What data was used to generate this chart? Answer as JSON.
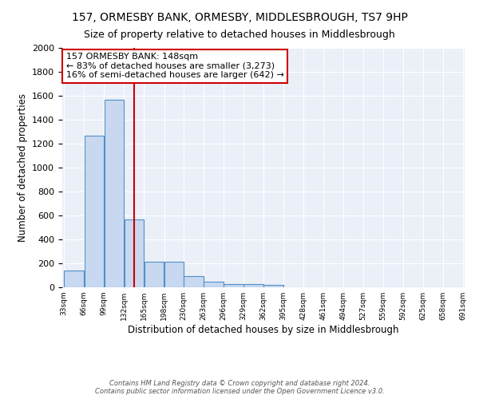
{
  "title": "157, ORMESBY BANK, ORMESBY, MIDDLESBROUGH, TS7 9HP",
  "subtitle": "Size of property relative to detached houses in Middlesbrough",
  "xlabel": "Distribution of detached houses by size in Middlesbrough",
  "ylabel": "Number of detached properties",
  "bar_color": "#c8d8f0",
  "bar_edge_color": "#5090c8",
  "bar_heights": [
    140,
    1270,
    1570,
    570,
    215,
    215,
    95,
    50,
    30,
    25,
    20,
    0,
    0,
    0,
    0,
    0,
    0,
    0,
    0,
    0
  ],
  "bin_edges": [
    33,
    66,
    99,
    132,
    165,
    198,
    230,
    263,
    296,
    329,
    362,
    395,
    428,
    461,
    494,
    527,
    559,
    592,
    625,
    658,
    691
  ],
  "tick_labels": [
    "33sqm",
    "66sqm",
    "99sqm",
    "132sqm",
    "165sqm",
    "198sqm",
    "230sqm",
    "263sqm",
    "296sqm",
    "329sqm",
    "362sqm",
    "395sqm",
    "428sqm",
    "461sqm",
    "494sqm",
    "527sqm",
    "559sqm",
    "592sqm",
    "625sqm",
    "658sqm",
    "691sqm"
  ],
  "ylim": [
    0,
    2000
  ],
  "yticks": [
    0,
    200,
    400,
    600,
    800,
    1000,
    1200,
    1400,
    1600,
    1800,
    2000
  ],
  "property_size": 148,
  "vline_color": "#cc0000",
  "annotation_text": "157 ORMESBY BANK: 148sqm\n← 83% of detached houses are smaller (3,273)\n16% of semi-detached houses are larger (642) →",
  "annotation_box_color": "#ffffff",
  "annotation_box_edge": "#cc0000",
  "bg_color": "#eaeff8",
  "footer": "Contains HM Land Registry data © Crown copyright and database right 2024.\nContains public sector information licensed under the Open Government Licence v3.0.",
  "title_fontsize": 10,
  "subtitle_fontsize": 9,
  "annotation_fontsize": 8
}
